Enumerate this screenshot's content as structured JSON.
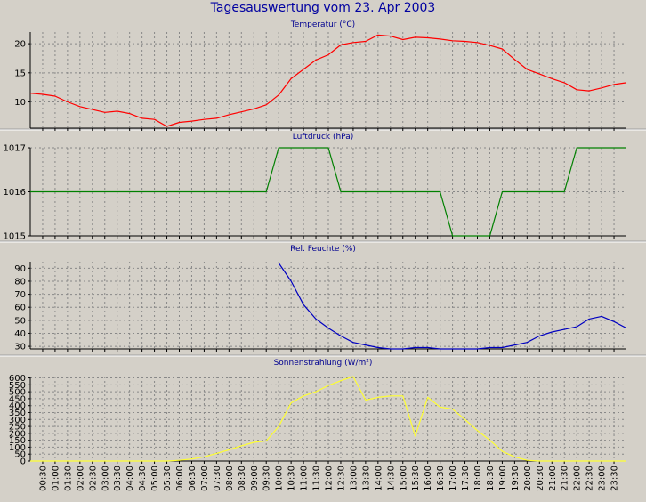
{
  "title": "Tagesauswertung vom 23. Apr 2003",
  "colors": {
    "background": "#d4d0c8",
    "plot_background": "#d4d0c8",
    "title": "#0000a0",
    "grid": "#888888",
    "temperature": "#ff0000",
    "pressure": "#008000",
    "humidity": "#0000c0",
    "radiation": "#ffff30"
  },
  "chart_data": [
    {
      "type": "line",
      "title": "Temperatur (°C)",
      "ylim": [
        5.5,
        22
      ],
      "yticks": [
        10,
        15,
        20
      ],
      "grid": true,
      "x": [
        "00:00",
        "00:30",
        "01:00",
        "01:30",
        "02:00",
        "02:30",
        "03:00",
        "03:30",
        "04:00",
        "04:30",
        "05:00",
        "05:30",
        "06:00",
        "06:30",
        "07:00",
        "07:30",
        "08:00",
        "08:30",
        "09:00",
        "09:30",
        "10:00",
        "10:30",
        "11:00",
        "11:30",
        "12:00",
        "12:30",
        "13:00",
        "13:30",
        "14:00",
        "14:30",
        "15:00",
        "15:30",
        "16:00",
        "16:30",
        "17:00",
        "17:30",
        "18:00",
        "18:30",
        "19:00",
        "19:30",
        "20:00",
        "20:30",
        "21:00",
        "21:30",
        "22:00",
        "22:30",
        "23:00",
        "23:30",
        "24:00"
      ],
      "series": [
        {
          "values": [
            11.5,
            11.3,
            11.0,
            10.0,
            9.2,
            8.7,
            8.2,
            8.4,
            8.0,
            7.2,
            7.0,
            5.8,
            6.5,
            6.7,
            7.0,
            7.2,
            7.8,
            8.3,
            8.8,
            9.5,
            11.2,
            14.0,
            15.6,
            17.2,
            18.1,
            19.8,
            20.2,
            20.4,
            21.5,
            21.3,
            20.7,
            21.1,
            21.0,
            20.8,
            20.5,
            20.4,
            20.2,
            19.7,
            19.1,
            17.3,
            15.6,
            14.8,
            14.0,
            13.3,
            12.1,
            11.9,
            12.4,
            13.0,
            13.3
          ]
        }
      ]
    },
    {
      "type": "line",
      "title": "Luftdruck (hPa)",
      "ylim": [
        1015,
        1017
      ],
      "yticks": [
        1015,
        1016,
        1017
      ],
      "grid": true,
      "x": [
        "00:00",
        "09:30",
        "10:00",
        "12:00",
        "12:30",
        "16:30",
        "17:00",
        "18:30",
        "19:00",
        "21:30",
        "22:00",
        "24:00"
      ],
      "series": [
        {
          "values": [
            1016,
            1016,
            1017,
            1017,
            1016,
            1016,
            1015,
            1015,
            1016,
            1016,
            1017,
            1017
          ]
        }
      ]
    },
    {
      "type": "line",
      "title": "Rel. Feuchte (%)",
      "ylim": [
        28,
        95
      ],
      "yticks": [
        30,
        40,
        50,
        60,
        70,
        80,
        90
      ],
      "grid": true,
      "x": [
        "10:00",
        "10:30",
        "11:00",
        "11:30",
        "12:00",
        "12:30",
        "13:00",
        "13:30",
        "14:00",
        "14:30",
        "15:00",
        "15:30",
        "16:00",
        "16:30",
        "17:00",
        "17:30",
        "18:00",
        "18:30",
        "19:00",
        "19:30",
        "20:00",
        "20:30",
        "21:00",
        "21:30",
        "22:00",
        "22:30",
        "23:00",
        "23:30",
        "24:00"
      ],
      "series": [
        {
          "values": [
            94,
            80,
            62,
            51,
            44,
            38,
            33,
            31,
            29,
            28,
            28,
            29,
            29,
            28,
            28,
            28,
            28,
            29,
            29,
            31,
            33,
            38,
            41,
            43,
            45,
            51,
            53,
            49,
            44
          ]
        }
      ]
    },
    {
      "type": "line",
      "title": "Sonnenstrahlung (W/m²)",
      "ylim": [
        0,
        610
      ],
      "yticks": [
        0,
        50,
        100,
        150,
        200,
        250,
        300,
        350,
        400,
        450,
        500,
        550,
        600
      ],
      "grid": true,
      "x": [
        "00:00",
        "00:30",
        "01:00",
        "01:30",
        "02:00",
        "02:30",
        "03:00",
        "03:30",
        "04:00",
        "04:30",
        "05:00",
        "05:30",
        "06:00",
        "06:30",
        "07:00",
        "07:30",
        "08:00",
        "08:30",
        "09:00",
        "09:30",
        "10:00",
        "10:30",
        "11:00",
        "11:30",
        "12:00",
        "12:30",
        "13:00",
        "13:30",
        "14:00",
        "14:30",
        "15:00",
        "15:30",
        "16:00",
        "16:30",
        "17:00",
        "17:30",
        "18:00",
        "18:30",
        "19:00",
        "19:30",
        "20:00",
        "20:30",
        "21:00",
        "21:30",
        "22:00",
        "22:30",
        "23:00",
        "23:30",
        "24:00"
      ],
      "series": [
        {
          "values": [
            0,
            0,
            0,
            0,
            0,
            0,
            0,
            0,
            0,
            0,
            0,
            0,
            5,
            15,
            30,
            55,
            80,
            110,
            135,
            145,
            250,
            420,
            470,
            500,
            545,
            580,
            610,
            440,
            460,
            470,
            470,
            180,
            460,
            390,
            375,
            300,
            220,
            150,
            70,
            30,
            5,
            0,
            0,
            0,
            0,
            0,
            0,
            0,
            0
          ]
        }
      ]
    }
  ],
  "x_tick_labels": [
    "00:30",
    "01:00",
    "01:30",
    "02:00",
    "02:30",
    "03:00",
    "03:30",
    "04:00",
    "04:30",
    "05:00",
    "05:30",
    "06:00",
    "06:30",
    "07:00",
    "07:30",
    "08:00",
    "08:30",
    "09:00",
    "09:30",
    "10:00",
    "10:30",
    "11:00",
    "11:30",
    "12:00",
    "12:30",
    "13:00",
    "13:30",
    "14:00",
    "14:30",
    "15:00",
    "15:30",
    "16:00",
    "16:30",
    "17:00",
    "17:30",
    "18:00",
    "18:30",
    "19:00",
    "19:30",
    "20:00",
    "20:30",
    "21:00",
    "21:30",
    "22:00",
    "22:30",
    "23:00",
    "23:30"
  ]
}
